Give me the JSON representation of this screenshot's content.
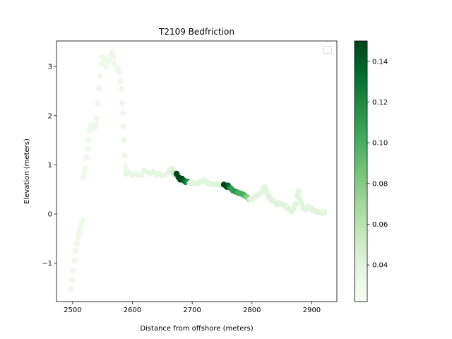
{
  "chart_data": {
    "type": "scatter",
    "title": "T2109 Bedfriction",
    "xlabel": "Distance from offshore (meters)",
    "ylabel": "Elevation (meters)",
    "xlim": [
      2473,
      2942
    ],
    "ylim": [
      -1.78,
      3.52
    ],
    "x_ticks": [
      2500,
      2600,
      2700,
      2800,
      2900
    ],
    "y_ticks": [
      -1,
      0,
      1,
      2,
      3
    ],
    "grid": false,
    "legend": {
      "placement": "top-right",
      "entries": []
    },
    "colorbar": {
      "label": "",
      "range": [
        0.022,
        0.15
      ],
      "ticks": [
        0.04,
        0.06,
        0.08,
        0.1,
        0.12,
        0.14
      ],
      "tick_labels": [
        "0.04",
        "0.06",
        "0.08",
        "0.10",
        "0.12",
        "0.14"
      ],
      "colormap": "Greens",
      "stops": [
        "#f7fcf5",
        "#e5f5e0",
        "#c7e9c0",
        "#a1d99b",
        "#74c476",
        "#41ab5d",
        "#238b45",
        "#006d2c",
        "#00441b"
      ]
    },
    "points": [
      [
        2497,
        -1.52,
        0.03
      ],
      [
        2499,
        -1.35,
        0.03
      ],
      [
        2501,
        -1.15,
        0.03
      ],
      [
        2503,
        -0.95,
        0.03
      ],
      [
        2505,
        -0.75,
        0.03
      ],
      [
        2507,
        -0.6,
        0.03
      ],
      [
        2509,
        -0.48,
        0.03
      ],
      [
        2511,
        -0.38,
        0.03
      ],
      [
        2513,
        -0.28,
        0.03
      ],
      [
        2515,
        -0.2,
        0.03
      ],
      [
        2517,
        -0.12,
        0.03
      ],
      [
        2517,
        0.75,
        0.03
      ],
      [
        2519,
        0.82,
        0.03
      ],
      [
        2521,
        0.92,
        0.03
      ],
      [
        2523,
        1.15,
        0.03
      ],
      [
        2525,
        1.32,
        0.03
      ],
      [
        2527,
        1.5,
        0.03
      ],
      [
        2528,
        1.7,
        0.03
      ],
      [
        2530,
        1.8,
        0.03
      ],
      [
        2533,
        1.78,
        0.03
      ],
      [
        2536,
        1.75,
        0.03
      ],
      [
        2539,
        1.82,
        0.03
      ],
      [
        2540,
        1.95,
        0.03
      ],
      [
        2542,
        2.25,
        0.03
      ],
      [
        2544,
        2.55,
        0.03
      ],
      [
        2546,
        2.8,
        0.03
      ],
      [
        2548,
        3.05,
        0.03
      ],
      [
        2550,
        3.2,
        0.03
      ],
      [
        2553,
        3.15,
        0.03
      ],
      [
        2556,
        3.0,
        0.03
      ],
      [
        2558,
        3.1,
        0.03
      ],
      [
        2561,
        3.12,
        0.03
      ],
      [
        2564,
        3.2,
        0.03
      ],
      [
        2566,
        3.28,
        0.03
      ],
      [
        2568,
        3.2,
        0.03
      ],
      [
        2570,
        3.05,
        0.03
      ],
      [
        2573,
        2.95,
        0.03
      ],
      [
        2576,
        2.98,
        0.03
      ],
      [
        2578,
        2.88,
        0.03
      ],
      [
        2580,
        2.7,
        0.03
      ],
      [
        2582,
        2.55,
        0.03
      ],
      [
        2583,
        2.25,
        0.03
      ],
      [
        2584,
        2.05,
        0.03
      ],
      [
        2585,
        1.78,
        0.03
      ],
      [
        2586,
        1.5,
        0.03
      ],
      [
        2587,
        1.2,
        0.03
      ],
      [
        2588,
        0.98,
        0.03
      ],
      [
        2589,
        0.88,
        0.03
      ],
      [
        2590,
        0.82,
        0.035
      ],
      [
        2595,
        0.84,
        0.035
      ],
      [
        2600,
        0.8,
        0.035
      ],
      [
        2605,
        0.82,
        0.035
      ],
      [
        2610,
        0.79,
        0.035
      ],
      [
        2615,
        0.8,
        0.035
      ],
      [
        2620,
        0.88,
        0.035
      ],
      [
        2625,
        0.85,
        0.035
      ],
      [
        2630,
        0.82,
        0.035
      ],
      [
        2635,
        0.86,
        0.035
      ],
      [
        2640,
        0.8,
        0.035
      ],
      [
        2645,
        0.82,
        0.035
      ],
      [
        2650,
        0.78,
        0.035
      ],
      [
        2655,
        0.8,
        0.035
      ],
      [
        2660,
        0.84,
        0.035
      ],
      [
        2663,
        0.9,
        0.04
      ],
      [
        2666,
        0.92,
        0.04
      ],
      [
        2669,
        0.85,
        0.05
      ],
      [
        2672,
        0.8,
        0.06
      ],
      [
        2674,
        0.82,
        0.15
      ],
      [
        2677,
        0.75,
        0.15
      ],
      [
        2680,
        0.7,
        0.15
      ],
      [
        2683,
        0.72,
        0.15
      ],
      [
        2686,
        0.68,
        0.14
      ],
      [
        2689,
        0.65,
        0.13
      ],
      [
        2692,
        0.66,
        0.12
      ],
      [
        2696,
        0.63,
        0.04
      ],
      [
        2700,
        0.64,
        0.04
      ],
      [
        2705,
        0.62,
        0.04
      ],
      [
        2710,
        0.63,
        0.04
      ],
      [
        2715,
        0.66,
        0.04
      ],
      [
        2720,
        0.68,
        0.04
      ],
      [
        2725,
        0.64,
        0.04
      ],
      [
        2730,
        0.62,
        0.04
      ],
      [
        2735,
        0.6,
        0.04
      ],
      [
        2740,
        0.61,
        0.04
      ],
      [
        2745,
        0.6,
        0.04
      ],
      [
        2750,
        0.58,
        0.045
      ],
      [
        2753,
        0.6,
        0.15
      ],
      [
        2756,
        0.58,
        0.15
      ],
      [
        2758,
        0.55,
        0.15
      ],
      [
        2760,
        0.58,
        0.14
      ],
      [
        2762,
        0.54,
        0.13
      ],
      [
        2765,
        0.52,
        0.11
      ],
      [
        2768,
        0.48,
        0.11
      ],
      [
        2771,
        0.46,
        0.11
      ],
      [
        2774,
        0.45,
        0.11
      ],
      [
        2777,
        0.43,
        0.1
      ],
      [
        2780,
        0.42,
        0.1
      ],
      [
        2783,
        0.41,
        0.1
      ],
      [
        2786,
        0.39,
        0.1
      ],
      [
        2789,
        0.36,
        0.09
      ],
      [
        2792,
        0.34,
        0.08
      ],
      [
        2795,
        0.3,
        0.06
      ],
      [
        2798,
        0.3,
        0.04
      ],
      [
        2802,
        0.32,
        0.04
      ],
      [
        2806,
        0.36,
        0.04
      ],
      [
        2810,
        0.4,
        0.04
      ],
      [
        2814,
        0.42,
        0.04
      ],
      [
        2818,
        0.5,
        0.04
      ],
      [
        2821,
        0.55,
        0.04
      ],
      [
        2824,
        0.45,
        0.04
      ],
      [
        2827,
        0.38,
        0.04
      ],
      [
        2830,
        0.32,
        0.04
      ],
      [
        2834,
        0.28,
        0.04
      ],
      [
        2838,
        0.25,
        0.04
      ],
      [
        2842,
        0.2,
        0.04
      ],
      [
        2846,
        0.22,
        0.04
      ],
      [
        2850,
        0.2,
        0.04
      ],
      [
        2854,
        0.18,
        0.04
      ],
      [
        2858,
        0.14,
        0.04
      ],
      [
        2862,
        0.1,
        0.04
      ],
      [
        2866,
        0.05,
        0.04
      ],
      [
        2870,
        0.12,
        0.04
      ],
      [
        2873,
        0.2,
        0.04
      ],
      [
        2876,
        0.38,
        0.04
      ],
      [
        2878,
        0.46,
        0.04
      ],
      [
        2880,
        0.3,
        0.04
      ],
      [
        2883,
        0.22,
        0.04
      ],
      [
        2886,
        0.12,
        0.04
      ],
      [
        2890,
        0.1,
        0.04
      ],
      [
        2894,
        0.15,
        0.04
      ],
      [
        2898,
        0.12,
        0.04
      ],
      [
        2902,
        0.08,
        0.04
      ],
      [
        2906,
        0.06,
        0.04
      ],
      [
        2910,
        0.04,
        0.04
      ],
      [
        2914,
        0.03,
        0.04
      ],
      [
        2918,
        0.02,
        0.04
      ],
      [
        2921,
        0.04,
        0.04
      ]
    ]
  }
}
